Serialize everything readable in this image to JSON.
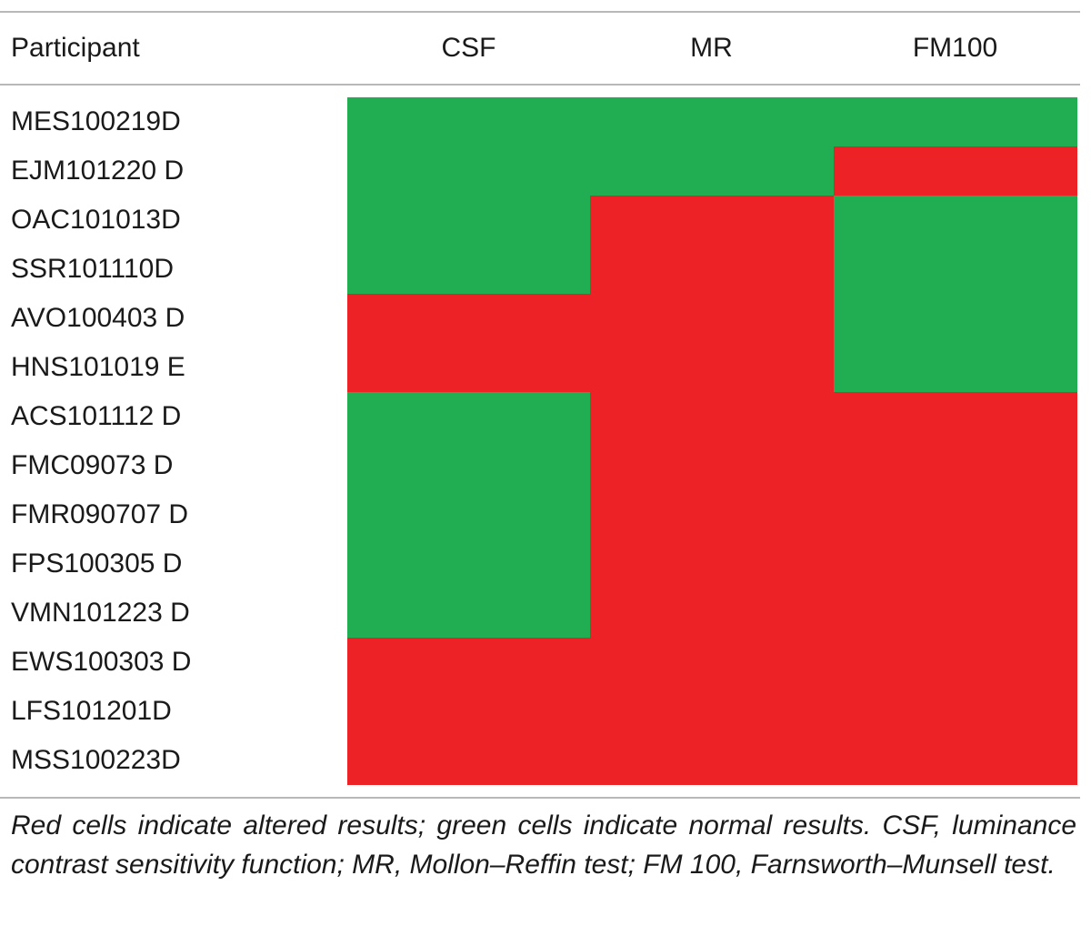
{
  "table": {
    "header": {
      "participant": "Participant",
      "columns": [
        "CSF",
        "MR",
        "FM100"
      ]
    },
    "status_colors": {
      "normal": "#21ad52",
      "altered": "#ec2227"
    },
    "rows": [
      {
        "participant": "MES100219D",
        "results": [
          "normal",
          "normal",
          "normal"
        ]
      },
      {
        "participant": "EJM101220 D",
        "results": [
          "normal",
          "normal",
          "altered"
        ]
      },
      {
        "participant": "OAC101013D",
        "results": [
          "normal",
          "altered",
          "normal"
        ]
      },
      {
        "participant": "SSR101110D",
        "results": [
          "normal",
          "altered",
          "normal"
        ]
      },
      {
        "participant": "AVO100403 D",
        "results": [
          "altered",
          "altered",
          "normal"
        ]
      },
      {
        "participant": "HNS101019 E",
        "results": [
          "altered",
          "altered",
          "normal"
        ]
      },
      {
        "participant": "ACS101112 D",
        "results": [
          "normal",
          "altered",
          "altered"
        ]
      },
      {
        "participant": "FMC09073 D",
        "results": [
          "normal",
          "altered",
          "altered"
        ]
      },
      {
        "participant": "FMR090707 D",
        "results": [
          "normal",
          "altered",
          "altered"
        ]
      },
      {
        "participant": "FPS100305 D",
        "results": [
          "normal",
          "altered",
          "altered"
        ]
      },
      {
        "participant": "VMN101223 D",
        "results": [
          "normal",
          "altered",
          "altered"
        ]
      },
      {
        "participant": "EWS100303 D",
        "results": [
          "altered",
          "altered",
          "altered"
        ]
      },
      {
        "participant": "LFS101201D",
        "results": [
          "altered",
          "altered",
          "altered"
        ]
      },
      {
        "participant": "MSS100223D",
        "results": [
          "altered",
          "altered",
          "altered"
        ]
      }
    ],
    "footnote": "Red cells indicate altered results; green cells indicate normal results. CSF, luminance contrast sensitivity function; MR, Mollon–Reffin test; FM 100, Farnsworth–Munsell test."
  }
}
